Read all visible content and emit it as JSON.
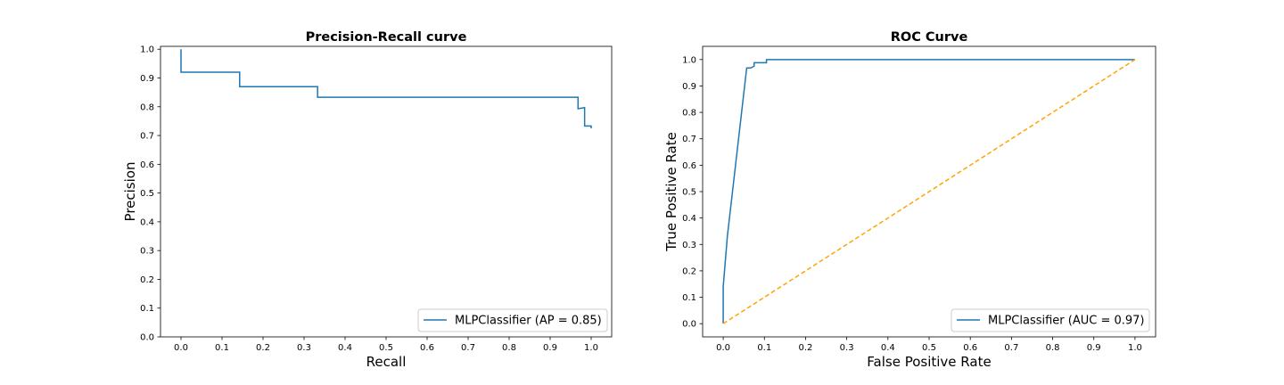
{
  "colors": {
    "series": "#1f77b4",
    "diagonal": "#ffa500",
    "frame": "#000000",
    "legend_border": "#cccccc"
  },
  "chart_data": [
    {
      "type": "line",
      "title": "Precision-Recall curve",
      "xlabel": "Recall",
      "ylabel": "Precision",
      "xlim": [
        -0.05,
        1.05
      ],
      "ylim": [
        0.0,
        1.01
      ],
      "xticks": [
        "0.0",
        "0.1",
        "0.2",
        "0.3",
        "0.4",
        "0.5",
        "0.6",
        "0.7",
        "0.8",
        "0.9",
        "1.0"
      ],
      "yticks": [
        "0.0",
        "0.1",
        "0.2",
        "0.3",
        "0.4",
        "0.5",
        "0.6",
        "0.7",
        "0.8",
        "0.9",
        "1.0"
      ],
      "grid": false,
      "legend": {
        "placement": "lower right",
        "entries": [
          "MLPClassifier (AP = 0.85)"
        ]
      },
      "series": [
        {
          "name": "MLPClassifier (AP = 0.85)",
          "step": true,
          "x": [
            0.0,
            0.0,
            0.143,
            0.143,
            0.333,
            0.333,
            0.968,
            0.968,
            0.968,
            0.984,
            0.984,
            1.0,
            1.0
          ],
          "y": [
            1.0,
            0.92,
            0.92,
            0.87,
            0.87,
            0.833,
            0.833,
            0.811,
            0.793,
            0.797,
            0.733,
            0.733,
            0.725
          ]
        }
      ]
    },
    {
      "type": "line",
      "title": "ROC Curve",
      "xlabel": "False Positive Rate",
      "ylabel": "True Positive Rate",
      "xlim": [
        -0.05,
        1.05
      ],
      "ylim": [
        -0.05,
        1.05
      ],
      "xticks": [
        "0.0",
        "0.1",
        "0.2",
        "0.3",
        "0.4",
        "0.5",
        "0.6",
        "0.7",
        "0.8",
        "0.9",
        "1.0"
      ],
      "yticks": [
        "0.0",
        "0.1",
        "0.2",
        "0.3",
        "0.4",
        "0.5",
        "0.6",
        "0.7",
        "0.8",
        "0.9",
        "1.0"
      ],
      "grid": false,
      "legend": {
        "placement": "lower right",
        "entries": [
          "MLPClassifier (AUC = 0.97)"
        ]
      },
      "series": [
        {
          "name": "MLPClassifier (AUC = 0.97)",
          "x": [
            0.0,
            0.0,
            0.01,
            0.057,
            0.067,
            0.075,
            0.075,
            0.105,
            0.105,
            1.0
          ],
          "y": [
            0.0,
            0.14,
            0.33,
            0.968,
            0.968,
            0.975,
            0.988,
            0.988,
            1.0,
            1.0
          ]
        },
        {
          "name": "",
          "dashed": true,
          "x": [
            0.0,
            1.0
          ],
          "y": [
            0.0,
            1.0
          ]
        }
      ]
    }
  ]
}
